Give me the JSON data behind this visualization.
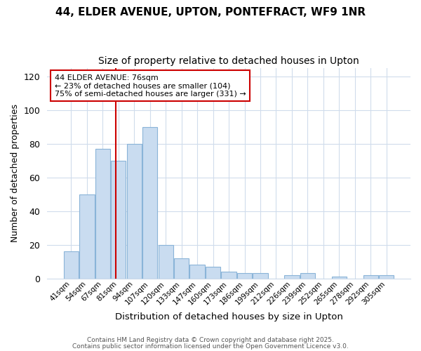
{
  "title1": "44, ELDER AVENUE, UPTON, PONTEFRACT, WF9 1NR",
  "title2": "Size of property relative to detached houses in Upton",
  "xlabel": "Distribution of detached houses by size in Upton",
  "ylabel": "Number of detached properties",
  "categories": [
    "41sqm",
    "54sqm",
    "67sqm",
    "81sqm",
    "94sqm",
    "107sqm",
    "120sqm",
    "133sqm",
    "147sqm",
    "160sqm",
    "173sqm",
    "186sqm",
    "199sqm",
    "212sqm",
    "226sqm",
    "239sqm",
    "252sqm",
    "265sqm",
    "278sqm",
    "292sqm",
    "305sqm"
  ],
  "values": [
    16,
    50,
    77,
    70,
    80,
    90,
    20,
    12,
    8,
    7,
    4,
    3,
    3,
    0,
    2,
    3,
    0,
    1,
    0,
    2,
    2
  ],
  "bar_color": "#c9dcf0",
  "bar_edge_color": "#8ab4d8",
  "vline_x_index": 2.85,
  "vline_color": "#cc0000",
  "annotation_text": "44 ELDER AVENUE: 76sqm\n← 23% of detached houses are smaller (104)\n75% of semi-detached houses are larger (331) →",
  "annotation_box_color": "#ffffff",
  "annotation_box_edge": "#cc0000",
  "ylim": [
    0,
    125
  ],
  "yticks": [
    0,
    20,
    40,
    60,
    80,
    100,
    120
  ],
  "footer1": "Contains HM Land Registry data © Crown copyright and database right 2025.",
  "footer2": "Contains public sector information licensed under the Open Government Licence v3.0.",
  "bg_color": "#ffffff",
  "plot_bg_color": "#ffffff",
  "grid_color": "#d0dcec"
}
